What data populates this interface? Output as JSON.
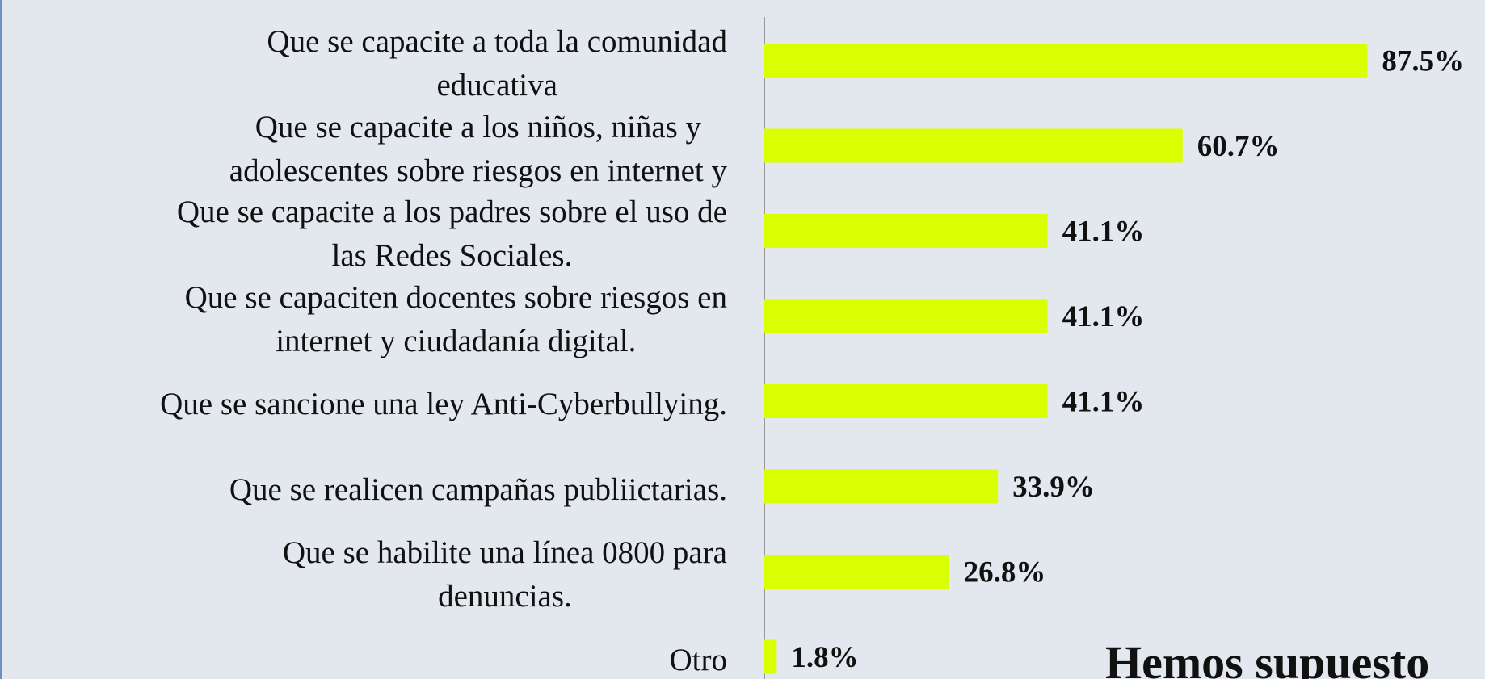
{
  "chart_data": {
    "type": "bar",
    "orientation": "horizontal",
    "categories": [
      "Que se capacite a toda la comunidad\neducativa",
      "Que se capacite a los niños, niñas y\nadolescentes sobre riesgos en internet y",
      "Que se capacite a los padres sobre el uso de\nlas Redes Sociales.",
      "Que se capaciten docentes sobre riesgos en\ninternet y ciudadanía digital.",
      "Que se sancione una ley Anti-Cyberbullying.",
      "Que se realicen campañas publiictarias.",
      "Que se habilite una línea 0800 para\ndenuncias.",
      "Otro"
    ],
    "values": [
      87.5,
      60.7,
      41.1,
      41.1,
      41.1,
      33.9,
      26.8,
      1.8
    ],
    "value_labels": [
      "87.5%",
      "60.7%",
      "41.1%",
      "41.1%",
      "41.1%",
      "33.9%",
      "26.8%",
      "1.8%"
    ],
    "color": "#d9ff00",
    "xlim": [
      0,
      100
    ],
    "annotation": "Hemos supuesto"
  }
}
